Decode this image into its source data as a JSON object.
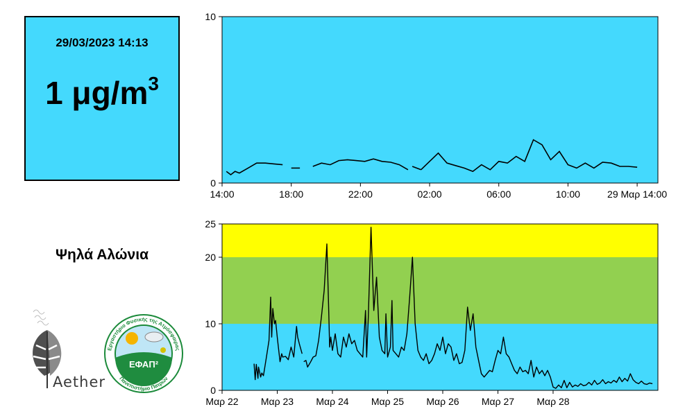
{
  "reading": {
    "timestamp": "29/03/2023 14:13",
    "value": "1 μg/m",
    "value_exponent": "3"
  },
  "station": {
    "name": "Ψηλά Αλώνια"
  },
  "logos": {
    "aether": {
      "text": "Aether"
    },
    "efap": {
      "text": "ΕΦΑΠ²",
      "ring_top": "Εργαστήριο Φυσικής της Ατμόσφαιρας",
      "ring_bottom": "Πανεπιστήμιο Πατρών"
    }
  },
  "chart_data": [
    {
      "type": "line",
      "background": "#44d9fd",
      "line_color": "#000000",
      "ylim": [
        0,
        10
      ],
      "y_tick_labels": [
        "0",
        "10"
      ],
      "x_tick_labels": [
        "14:00",
        "18:00",
        "22:00",
        "02:00",
        "06:00",
        "10:00",
        "29 Μαρ 14:00"
      ],
      "x_tick_hours": [
        0,
        4,
        8,
        12,
        16,
        20,
        24
      ],
      "series": [
        {
          "hours": [
            0.25,
            0.5,
            0.75,
            1.0,
            1.5,
            2.0,
            2.5,
            3.0,
            3.5
          ],
          "values": [
            0.7,
            0.5,
            0.7,
            0.6,
            0.9,
            1.2,
            1.2,
            1.15,
            1.1
          ]
        },
        {
          "hours": [
            4.0,
            4.5
          ],
          "values": [
            0.9,
            0.9
          ]
        },
        {
          "hours": [
            5.25,
            5.75,
            6.25,
            6.75,
            7.25,
            7.75,
            8.25,
            8.75,
            9.25,
            9.75,
            10.25,
            10.75
          ],
          "values": [
            1.0,
            1.2,
            1.1,
            1.35,
            1.4,
            1.35,
            1.3,
            1.45,
            1.3,
            1.25,
            1.1,
            0.8
          ]
        },
        {
          "hours": [
            11.0,
            11.5
          ],
          "values": [
            1.0,
            0.8
          ]
        },
        {
          "hours": [
            11.5,
            12.0,
            12.5,
            13.0,
            13.5,
            14.0,
            14.5,
            15.0,
            15.5,
            16.0,
            16.5,
            17.0,
            17.5,
            18.0,
            18.5,
            19.0,
            19.5,
            20.0,
            20.5,
            21.0,
            21.5,
            22.0,
            22.5,
            23.0,
            23.5,
            24.0
          ],
          "values": [
            0.8,
            1.3,
            1.8,
            1.2,
            1.05,
            0.9,
            0.7,
            1.1,
            0.8,
            1.3,
            1.2,
            1.6,
            1.3,
            2.6,
            2.3,
            1.4,
            1.9,
            1.1,
            0.9,
            1.2,
            0.9,
            1.25,
            1.2,
            1.0,
            1.0,
            0.95
          ]
        }
      ]
    },
    {
      "type": "line",
      "line_color": "#000000",
      "ylim": [
        0,
        25
      ],
      "y_tick_labels": [
        "0",
        "10",
        "20",
        "25"
      ],
      "x_tick_labels": [
        "Μαρ 22",
        "Μαρ 23",
        "Μαρ 24",
        "Μαρ 25",
        "Μαρ 26",
        "Μαρ 27",
        "Μαρ 28"
      ],
      "x_tick_days": [
        0,
        1,
        2,
        3,
        4,
        5,
        6
      ],
      "bands": [
        {
          "from": 0,
          "to": 10,
          "color": "#44d9fd"
        },
        {
          "from": 10,
          "to": 20,
          "color": "#92d050"
        },
        {
          "from": 20,
          "to": 25,
          "color": "#ffff00"
        }
      ],
      "series": [
        {
          "days": [
            0.58,
            0.6,
            0.62,
            0.65,
            0.66,
            0.7,
            0.72,
            0.75,
            0.8,
            0.85,
            0.88,
            0.9,
            0.92,
            0.95,
            0.97,
            1.0,
            1.02,
            1.05,
            1.08,
            1.1,
            1.15,
            1.2,
            1.25,
            1.3,
            1.35,
            1.37,
            1.4,
            1.45
          ],
          "values": [
            4.0,
            1.6,
            3.9,
            1.8,
            3.5,
            2.0,
            2.6,
            2.2,
            4.8,
            7.5,
            14.0,
            8.0,
            12.3,
            10.0,
            10.5,
            8.0,
            6.5,
            4.3,
            5.5,
            5.0,
            5.1,
            4.6,
            6.5,
            5.0,
            9.6,
            8.0,
            7.0,
            5.5
          ]
        },
        {
          "days": [
            1.48,
            1.52,
            1.55,
            1.6,
            1.65,
            1.7,
            1.75,
            1.8,
            1.85,
            1.9,
            1.93,
            1.95,
            1.97,
            2.0,
            2.05,
            2.1,
            2.15,
            2.2,
            2.25,
            2.3,
            2.35,
            2.4,
            2.45,
            2.5,
            2.55,
            2.6,
            2.62,
            2.65,
            2.7,
            2.75,
            2.8,
            2.85,
            2.9,
            2.95,
            2.97,
            3.0,
            3.05,
            3.08,
            3.1,
            3.15,
            3.2,
            3.25,
            3.3,
            3.35,
            3.4,
            3.45,
            3.5,
            3.55,
            3.6,
            3.65,
            3.7,
            3.75,
            3.8,
            3.85,
            3.9,
            3.95,
            4.0,
            4.05,
            4.1,
            4.15,
            4.2,
            4.25,
            4.3,
            4.35,
            4.4,
            4.45,
            4.5,
            4.55,
            4.6,
            4.65,
            4.7,
            4.75,
            4.8,
            4.85,
            4.9,
            4.95,
            5.0,
            5.05,
            5.1,
            5.15,
            5.2,
            5.25,
            5.3,
            5.35,
            5.4,
            5.45,
            5.5,
            5.55,
            5.6,
            5.65,
            5.7,
            5.75,
            5.8,
            5.85,
            5.9,
            5.95,
            6.0,
            6.05,
            6.1,
            6.15,
            6.2,
            6.25,
            6.3,
            6.35,
            6.4,
            6.45,
            6.5,
            6.55,
            6.6,
            6.65,
            6.7,
            6.75,
            6.8,
            6.85,
            6.9,
            6.95,
            7.0,
            7.05,
            7.1,
            7.15,
            7.2,
            7.25,
            7.3,
            7.35,
            7.4,
            7.45,
            7.5,
            7.55,
            7.6,
            7.65,
            7.7,
            7.75,
            7.8
          ],
          "values": [
            4.3,
            4.5,
            3.5,
            4.2,
            5.0,
            5.2,
            7.5,
            11.0,
            15.0,
            22.0,
            13.0,
            6.5,
            8.0,
            6.0,
            8.5,
            5.5,
            5.0,
            8.0,
            6.5,
            8.5,
            7.0,
            7.5,
            6.0,
            5.5,
            5.0,
            12.0,
            5.0,
            11.0,
            24.5,
            12.0,
            17.0,
            8.0,
            6.0,
            5.5,
            11.5,
            5.0,
            6.5,
            13.5,
            6.0,
            5.5,
            5.0,
            6.5,
            6.0,
            8.5,
            14.0,
            20.0,
            10.0,
            6.0,
            5.0,
            4.5,
            5.5,
            4.0,
            4.5,
            5.5,
            7.0,
            6.0,
            8.0,
            5.5,
            7.0,
            6.5,
            4.5,
            5.5,
            4.0,
            4.2,
            6.0,
            12.5,
            9.0,
            11.5,
            6.5,
            4.5,
            2.5,
            2.0,
            2.5,
            3.0,
            2.8,
            4.5,
            6.0,
            5.5,
            8.0,
            5.5,
            5.0,
            4.0,
            3.0,
            2.5,
            3.5,
            2.8,
            3.0,
            2.5,
            4.5,
            2.0,
            3.5,
            2.5,
            3.0,
            2.2,
            3.0,
            2.0,
            0.5,
            0.3,
            0.8,
            0.4,
            1.5,
            0.4,
            1.2,
            0.5,
            0.8,
            0.6,
            1.0,
            0.7,
            0.8,
            1.2,
            0.8,
            1.5,
            0.9,
            1.1,
            1.6,
            1.0,
            1.3,
            1.1,
            1.5,
            1.2,
            2.0,
            1.3,
            1.8,
            1.4,
            2.5,
            1.6,
            1.2,
            1.0,
            1.4,
            1.0,
            0.9,
            1.1,
            1.0
          ]
        }
      ]
    }
  ]
}
